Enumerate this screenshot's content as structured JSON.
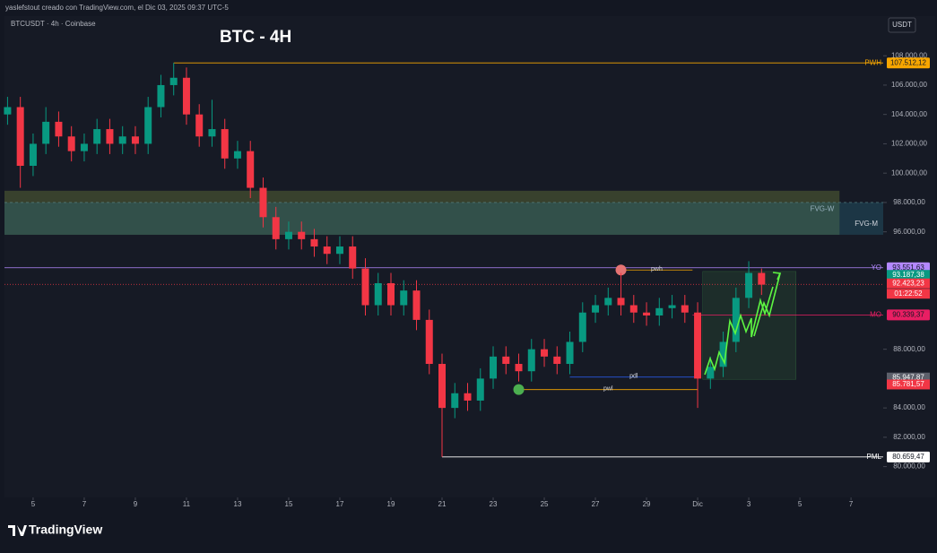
{
  "attribution": "yaslefstout creado con TradingView.com, el Dic 03, 2025 09:37 UTC-5",
  "brand": "TradingView",
  "chart_data": {
    "type": "candlestick",
    "title": "BTC - 4H",
    "symbol_label": "BTCUSDT · 4h · Coinbase",
    "currency": "USDT",
    "x": [
      4,
      4.5,
      5,
      5.5,
      6,
      6.5,
      7,
      7.5,
      8,
      8.5,
      9,
      9.5,
      10,
      10.5,
      11,
      11.5,
      12,
      12.5,
      13,
      13.5,
      14,
      14.5,
      15,
      15.5,
      16,
      16.5,
      17,
      17.5,
      18,
      18.5,
      19,
      19.5,
      20,
      20.5,
      21,
      21.5,
      22,
      22.5,
      23,
      23.5,
      24,
      24.5,
      25,
      25.5,
      26,
      26.5,
      27,
      27.5,
      28,
      28.5,
      29,
      29.5,
      30,
      30.5,
      31,
      31.5,
      32,
      32.5,
      33,
      33.5
    ],
    "open": [
      104000,
      104500,
      100500,
      102000,
      103500,
      102500,
      101500,
      102000,
      103000,
      102000,
      102500,
      102000,
      104500,
      106000,
      106500,
      104000,
      102500,
      103000,
      101000,
      101500,
      99000,
      97000,
      95500,
      96000,
      95500,
      95000,
      94500,
      95000,
      93500,
      91000,
      92500,
      91000,
      92000,
      90000,
      87000,
      84000,
      85000,
      84500,
      86000,
      87500,
      87000,
      86500,
      88000,
      87500,
      87000,
      88500,
      90500,
      91000,
      91500,
      91000,
      90500,
      90300,
      90800,
      91000,
      90500,
      86000,
      86800,
      88500,
      91500,
      93200
    ],
    "high": [
      105200,
      105200,
      102700,
      104500,
      104200,
      103200,
      102700,
      103700,
      103700,
      103200,
      103200,
      105200,
      106700,
      107512,
      107200,
      104700,
      105000,
      103700,
      102200,
      102200,
      99700,
      97700,
      96700,
      96700,
      96200,
      95700,
      95700,
      95700,
      94200,
      93200,
      93200,
      92700,
      92700,
      90700,
      87700,
      85700,
      85700,
      86700,
      88200,
      88200,
      87700,
      88700,
      88700,
      88200,
      89200,
      91200,
      91700,
      92200,
      93200,
      91700,
      91200,
      91500,
      91700,
      91700,
      91200,
      87500,
      89200,
      92200,
      94000,
      93500
    ],
    "low": [
      103300,
      99000,
      99800,
      101300,
      101800,
      100800,
      100800,
      101300,
      101300,
      101300,
      101300,
      101300,
      103800,
      105300,
      103300,
      101800,
      101800,
      100300,
      100300,
      98300,
      96300,
      94800,
      94800,
      94800,
      94300,
      93800,
      93800,
      92800,
      90300,
      90300,
      90300,
      90300,
      89300,
      86300,
      80659,
      83300,
      83800,
      83800,
      85300,
      86300,
      85800,
      85800,
      86800,
      86300,
      86300,
      87800,
      89800,
      90300,
      90300,
      89800,
      89600,
      89600,
      90100,
      89800,
      84000,
      85300,
      86100,
      87800,
      90800,
      91700
    ],
    "close": [
      104500,
      100500,
      102000,
      103500,
      102500,
      101500,
      102000,
      103000,
      102000,
      102500,
      102000,
      104500,
      106000,
      106500,
      104000,
      102500,
      103000,
      101000,
      101500,
      99000,
      97000,
      95500,
      96000,
      95500,
      95000,
      94500,
      95000,
      93500,
      91000,
      92500,
      91000,
      92000,
      90000,
      87000,
      84000,
      85000,
      84500,
      86000,
      87500,
      87000,
      86500,
      88000,
      87500,
      87000,
      88500,
      90500,
      91000,
      91500,
      91000,
      90500,
      90300,
      90800,
      91000,
      90500,
      86000,
      86800,
      88500,
      91500,
      93200,
      92400
    ],
    "colors": {
      "up": "#089981",
      "down": "#f23645"
    },
    "xlim": [
      3.88,
      38.26
    ],
    "xticks": [
      5,
      7,
      9,
      11,
      13,
      15,
      17,
      19,
      21,
      23,
      25,
      27,
      29,
      {
        "value": 31,
        "label": "Dic"
      },
      {
        "value": 33,
        "label": "3"
      },
      {
        "value": 35,
        "label": "5"
      },
      {
        "value": 37,
        "label": "7"
      }
    ],
    "ylim": [
      77900,
      110700
    ],
    "yticks": [
      {
        "value": 108000,
        "label": "108.000,00"
      },
      {
        "value": 106000,
        "label": "106.000,00"
      },
      {
        "value": 104000,
        "label": "104.000,00"
      },
      {
        "value": 102000,
        "label": "102.000,00"
      },
      {
        "value": 100000,
        "label": "100.000,00"
      },
      {
        "value": 98000,
        "label": "98.000,00"
      },
      {
        "value": 96000,
        "label": "96.000,00"
      },
      {
        "value": 88000,
        "label": "88.000,00"
      },
      {
        "value": 84000,
        "label": "84.000,00"
      },
      {
        "value": 82000,
        "label": "82.000,00"
      },
      {
        "value": 80000,
        "label": "80.000,00"
      }
    ],
    "levels": [
      {
        "name": "PWH",
        "value": 107512.12,
        "value_label": "107.512,12",
        "color": "#f7a600",
        "from": 10.5
      },
      {
        "name": "YO",
        "value": 93551.63,
        "value_label": "93.551,63",
        "color": "#b388ff",
        "from": 3.88
      },
      {
        "name": "MO",
        "value": 90339.37,
        "value_label": "90.339,37",
        "color": "#e91e63",
        "from": 30.8
      },
      {
        "name": "PML",
        "value": 80659.47,
        "value_label": "80.659,47",
        "color": "#ffffff",
        "from": 21
      }
    ],
    "price_tags": [
      {
        "value": 93187.38,
        "label": "93.187,38",
        "color": "#089981"
      },
      {
        "value": 92423.23,
        "label": "92.423,23",
        "color": "#f23645",
        "countdown": "01:22:52"
      },
      {
        "value": 85947.87,
        "label": "85.947,87",
        "color": "#5d606b"
      },
      {
        "value": 85781.57,
        "label": "85.781,57",
        "color": "#f23645"
      }
    ],
    "zones": [
      {
        "label": "FVG-W",
        "top": 98800,
        "bottom": 95800,
        "to": 36.55,
        "color": "rgba(120,140,60,0.35)"
      },
      {
        "label": "FVG-M",
        "top": 98000,
        "bottom": 95800,
        "to": 38.26,
        "color": "rgba(40,110,130,0.35)"
      }
    ],
    "markers": [
      {
        "label": "pwh",
        "value": 93400,
        "from": 28,
        "to": 30.8,
        "color": "#f7a600",
        "dot": "#e57373"
      },
      {
        "label": "pdl",
        "value": 86100,
        "from": 26,
        "to": 31,
        "color": "#2962ff"
      },
      {
        "label": "pwl",
        "value": 85250,
        "from": 24,
        "to": 31,
        "color": "#f7a600",
        "dot": "#4caf50"
      }
    ],
    "projection": {
      "top": 93300,
      "bottom": 85950,
      "from": 31.2,
      "to": 34.85
    }
  }
}
